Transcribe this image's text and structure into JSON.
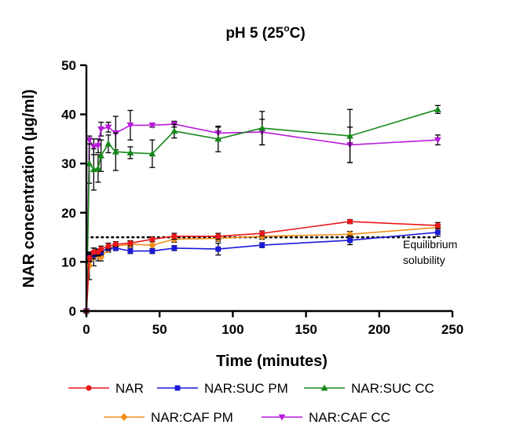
{
  "chart_data": {
    "type": "line",
    "title": "pH 5 (25",
    "title_sup": "o",
    "title_end": "C)",
    "xlabel": "Time (minutes)",
    "ylabel": "NAR concentration (µg/ml)",
    "xlim": [
      0,
      250
    ],
    "ylim": [
      0,
      50
    ],
    "xticks": [
      0,
      50,
      100,
      150,
      200,
      250
    ],
    "yticks": [
      0,
      10,
      20,
      30,
      40,
      50
    ],
    "grid": false,
    "legend_position": "bottom",
    "reference_line": {
      "y": 15,
      "style": "dotted",
      "color": "#000000",
      "label": [
        "Equilibrium",
        "solubility"
      ]
    },
    "series": [
      {
        "name": "NAR",
        "color": "#e8181b",
        "marker": "circle",
        "x": [
          0,
          2,
          5,
          8,
          10,
          15,
          20,
          30,
          45,
          60,
          90,
          120,
          180,
          240
        ],
        "y": [
          0,
          10.8,
          12.0,
          12.0,
          12.6,
          13.2,
          13.6,
          13.8,
          14.6,
          15.2,
          15.2,
          15.8,
          18.2,
          17.4
        ],
        "err": [
          0,
          0.8,
          0.8,
          0.6,
          0.6,
          0.6,
          0.5,
          0.5,
          0.5,
          0.6,
          0.6,
          0.5,
          0.4,
          0.6
        ]
      },
      {
        "name": "NAR:SUC PM",
        "color": "#1a1ad8",
        "marker": "square",
        "x": [
          0,
          2,
          5,
          8,
          10,
          15,
          20,
          30,
          45,
          60,
          90,
          120,
          180,
          240
        ],
        "y": [
          0,
          11.0,
          11.4,
          11.8,
          12.0,
          12.8,
          12.8,
          12.2,
          12.2,
          12.8,
          12.6,
          13.4,
          14.4,
          16.0
        ],
        "err": [
          0,
          0.8,
          0.8,
          0.6,
          0.6,
          0.5,
          0.5,
          0.5,
          0.5,
          0.5,
          1.2,
          0.5,
          0.9,
          0.8
        ]
      },
      {
        "name": "NAR:SUC CC",
        "color": "#16881a",
        "marker": "triangle-up",
        "x": [
          0,
          2,
          5,
          8,
          10,
          15,
          20,
          30,
          45,
          60,
          90,
          120,
          180,
          240
        ],
        "y": [
          0,
          30.0,
          28.8,
          29.0,
          31.6,
          34.0,
          32.4,
          32.2,
          32.0,
          36.6,
          35.0,
          37.2,
          35.6,
          41.0
        ],
        "err": [
          0,
          4.0,
          4.2,
          2.8,
          3.2,
          1.8,
          3.8,
          1.2,
          2.8,
          1.4,
          2.6,
          3.4,
          5.4,
          0.8
        ]
      },
      {
        "name": "NAR:CAF PM",
        "color": "#f39019",
        "marker": "diamond",
        "x": [
          0,
          2,
          5,
          8,
          10,
          15,
          20,
          30,
          45,
          60,
          90,
          120,
          180,
          240
        ],
        "y": [
          0,
          9.2,
          11.0,
          11.4,
          11.0,
          12.6,
          13.2,
          13.6,
          13.4,
          14.6,
          14.8,
          15.2,
          15.6,
          17.0
        ],
        "err": [
          0,
          2.8,
          1.8,
          1.2,
          0.8,
          0.6,
          0.6,
          0.6,
          1.0,
          0.6,
          0.6,
          0.6,
          0.6,
          0.6
        ]
      },
      {
        "name": "NAR:CAF CC",
        "color": "#b81ad9",
        "marker": "triangle-down",
        "x": [
          0,
          2,
          5,
          8,
          10,
          15,
          20,
          30,
          45,
          60,
          90,
          120,
          180,
          240
        ],
        "y": [
          0,
          34.8,
          33.4,
          33.6,
          37.0,
          37.4,
          36.2,
          37.8,
          37.8,
          38.0,
          36.2,
          36.4,
          33.8,
          34.8
        ],
        "err": [
          0,
          0.8,
          1.6,
          1.4,
          1.4,
          1.0,
          3.4,
          3.0,
          0.4,
          0.6,
          1.2,
          2.6,
          3.6,
          1.0
        ]
      }
    ]
  }
}
